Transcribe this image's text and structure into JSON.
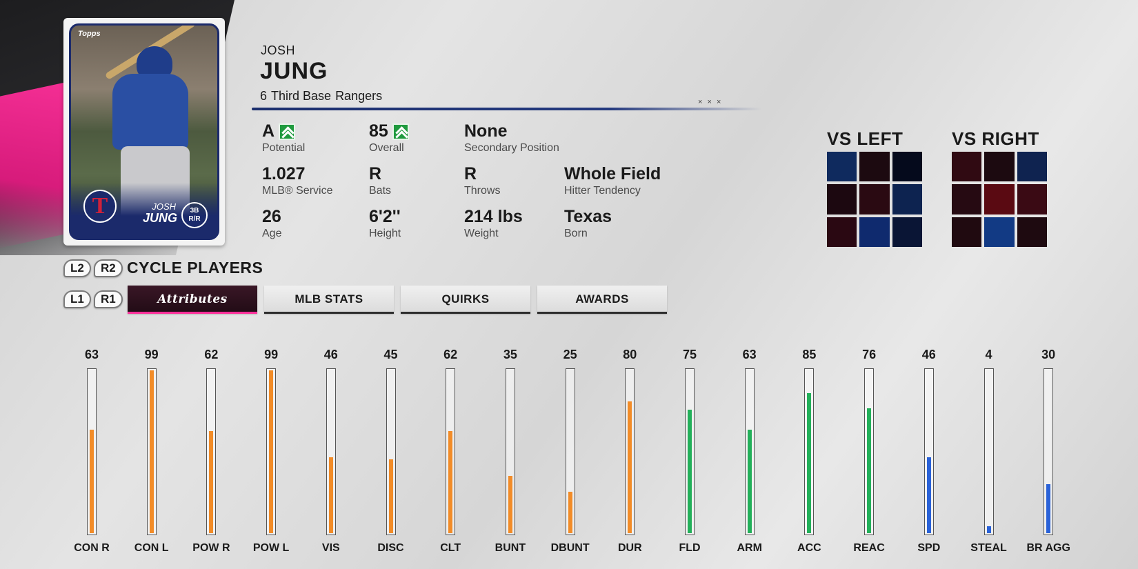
{
  "card": {
    "brand": "Topps",
    "first_name": "JOSH",
    "last_name": "JUNG",
    "position": "3B",
    "handedness": "R/R",
    "team_logo_letter": "T"
  },
  "player": {
    "first_name": "JOSH",
    "last_name": "JUNG",
    "number": "6",
    "position": "Third Base",
    "team": "Rangers"
  },
  "info": {
    "potential": {
      "value": "A",
      "label": "Potential",
      "icon": "upgrade-arrow-icon"
    },
    "overall": {
      "value": "85",
      "label": "Overall",
      "icon": "upgrade-arrow-icon"
    },
    "secondary_position": {
      "value": "None",
      "label": "Secondary Position"
    },
    "service": {
      "value": "1.027",
      "label": "MLB® Service"
    },
    "bats": {
      "value": "R",
      "label": "Bats"
    },
    "throws": {
      "value": "R",
      "label": "Throws"
    },
    "hitter_tendency": {
      "value": "Whole Field",
      "label": "Hitter Tendency"
    },
    "age": {
      "value": "26",
      "label": "Age"
    },
    "height": {
      "value": "6'2''",
      "label": "Height"
    },
    "weight": {
      "value": "214 lbs",
      "label": "Weight"
    },
    "born": {
      "value": "Texas",
      "label": "Born"
    }
  },
  "zones": {
    "left": {
      "title": "VS LEFT",
      "colors": [
        "#0f2a5e",
        "#1c0a10",
        "#050a1c",
        "#1c0810",
        "#2a0a12",
        "#0d2350",
        "#2a0812",
        "#0f2a6e",
        "#0a1535"
      ]
    },
    "right": {
      "title": "VS RIGHT",
      "colors": [
        "#300a12",
        "#1c0a10",
        "#0f2350",
        "#260a12",
        "#5a0a12",
        "#3a0a14",
        "#200a10",
        "#123a84",
        "#1e0a10"
      ]
    }
  },
  "controls": {
    "cycle_label": "CYCLE PLAYERS",
    "l2": "L2",
    "r2": "R2",
    "l1": "L1",
    "r1": "R1"
  },
  "tabs": [
    {
      "label": "Attributes",
      "active": true
    },
    {
      "label": "MLB STATS",
      "active": false
    },
    {
      "label": "QUIRKS",
      "active": false
    },
    {
      "label": "AWARDS",
      "active": false
    }
  ],
  "colors": {
    "hitting": "#f28c28",
    "fielding": "#23b05a",
    "running": "#2a62d8",
    "accent": "#ff2f9a"
  },
  "chart_data": {
    "type": "bar",
    "ylim": [
      0,
      99
    ],
    "categories": [
      "CON R",
      "CON L",
      "POW R",
      "POW L",
      "VIS",
      "DISC",
      "CLT",
      "BUNT",
      "DBUNT",
      "DUR",
      "FLD",
      "ARM",
      "ACC",
      "REAC",
      "SPD",
      "STEAL",
      "BR AGG"
    ],
    "values": [
      63,
      99,
      62,
      99,
      46,
      45,
      62,
      35,
      25,
      80,
      75,
      63,
      85,
      76,
      46,
      4,
      30
    ],
    "groups": [
      "hitting",
      "hitting",
      "hitting",
      "hitting",
      "hitting",
      "hitting",
      "hitting",
      "hitting",
      "hitting",
      "hitting",
      "fielding",
      "fielding",
      "fielding",
      "fielding",
      "running",
      "running",
      "running"
    ]
  }
}
